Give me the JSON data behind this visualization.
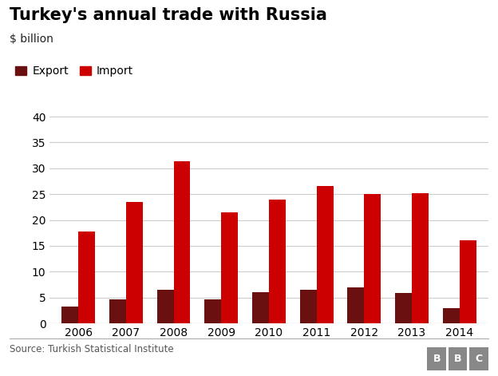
{
  "title": "Turkey's annual trade with Russia",
  "subtitle": "$ billion",
  "years": [
    2006,
    2007,
    2008,
    2009,
    2010,
    2011,
    2012,
    2013,
    2014
  ],
  "exports": [
    3.2,
    4.7,
    6.5,
    4.6,
    6.0,
    6.5,
    7.0,
    5.9,
    2.9
  ],
  "imports": [
    17.8,
    23.5,
    31.3,
    21.4,
    24.0,
    26.6,
    25.0,
    25.2,
    16.0
  ],
  "export_color": "#6B1010",
  "import_color": "#CC0000",
  "bar_width": 0.35,
  "ylim": [
    0,
    40
  ],
  "yticks": [
    0,
    5,
    10,
    15,
    20,
    25,
    30,
    35,
    40
  ],
  "background_color": "#ffffff",
  "grid_color": "#cccccc",
  "source_text": "Source: Turkish Statistical Institute",
  "legend_export": "Export",
  "legend_import": "Import",
  "title_fontsize": 15,
  "subtitle_fontsize": 10,
  "tick_fontsize": 10,
  "legend_fontsize": 10,
  "bbc_box_color": "#888888"
}
